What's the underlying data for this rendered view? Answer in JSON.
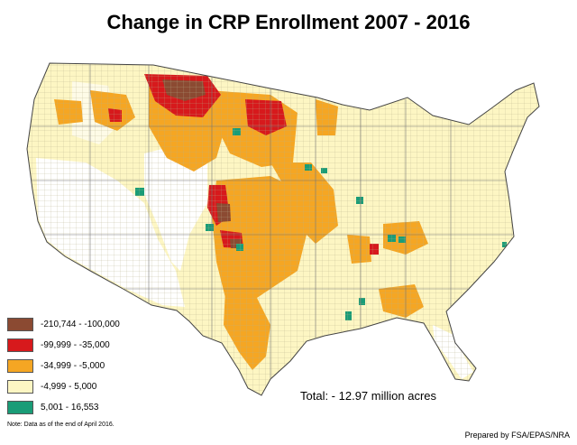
{
  "title": "Change in CRP Enrollment 2007 - 2016",
  "legend": [
    {
      "label": "-210,744 - -100,000",
      "color": "#8b4a32"
    },
    {
      "label": "-99,999 - -35,000",
      "color": "#d7191c"
    },
    {
      "label": "-34,999 - -5,000",
      "color": "#f5a623"
    },
    {
      "label": "-4,999 - 5,000",
      "color": "#fdf6c3"
    },
    {
      "label": "5,001 - 16,553",
      "color": "#1a9c77"
    }
  ],
  "total_text": "Total: - 12.97 million acres",
  "note": "Note: Data as of the end of April 2016.",
  "credit": "Prepared by FSA/EPAS/NRA",
  "colors": {
    "nodata": "#ffffff",
    "border": "#444444",
    "county_line": "#9a9a7a"
  }
}
